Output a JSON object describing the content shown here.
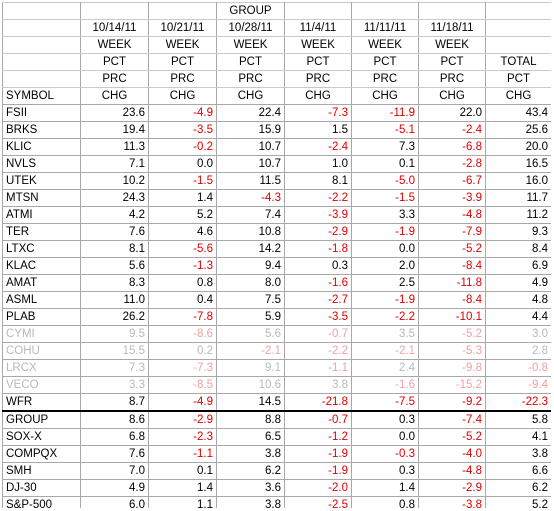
{
  "header": {
    "row1": [
      "",
      "",
      "",
      "GROUP",
      "",
      "",
      "",
      ""
    ],
    "row2": [
      "",
      "10/14/11",
      "10/21/11",
      "10/28/11",
      "11/4/11",
      "11/11/11",
      "11/18/11",
      ""
    ],
    "row3": [
      "",
      "WEEK",
      "WEEK",
      "WEEK",
      "WEEK",
      "WEEK",
      "WEEK",
      ""
    ],
    "row4": [
      "",
      "PCT",
      "PCT",
      "PCT",
      "PCT",
      "PCT",
      "PCT",
      "TOTAL"
    ],
    "row5": [
      "",
      "PRC",
      "PRC",
      "PRC",
      "PRC",
      "PRC",
      "PRC",
      "PCT"
    ],
    "row6": [
      "SYMBOL",
      "CHG",
      "CHG",
      "CHG",
      "CHG",
      "CHG",
      "CHG",
      "CHG"
    ]
  },
  "rows": [
    {
      "symbol": "FSII",
      "values": [
        "23.6",
        "-4.9",
        "22.4",
        "-7.3",
        "-11.9",
        "22.0",
        "43.4"
      ],
      "faded": false,
      "sep": false
    },
    {
      "symbol": "BRKS",
      "values": [
        "19.4",
        "-3.5",
        "15.9",
        "1.5",
        "-5.1",
        "-2.4",
        "25.6"
      ],
      "faded": false,
      "sep": false
    },
    {
      "symbol": "KLIC",
      "values": [
        "11.3",
        "-0.2",
        "10.7",
        "-2.4",
        "7.3",
        "-6.8",
        "20.0"
      ],
      "faded": false,
      "sep": false
    },
    {
      "symbol": "NVLS",
      "values": [
        "7.1",
        "0.0",
        "10.7",
        "1.0",
        "0.1",
        "-2.8",
        "16.5"
      ],
      "faded": false,
      "sep": false
    },
    {
      "symbol": "UTEK",
      "values": [
        "10.2",
        "-1.5",
        "11.5",
        "8.1",
        "-5.0",
        "-6.7",
        "16.0"
      ],
      "faded": false,
      "sep": false
    },
    {
      "symbol": "MTSN",
      "values": [
        "24.3",
        "1.4",
        "-4.3",
        "-2.2",
        "-1.5",
        "-3.9",
        "11.7"
      ],
      "faded": false,
      "sep": false
    },
    {
      "symbol": "ATMI",
      "values": [
        "4.2",
        "5.2",
        "7.4",
        "-3.9",
        "3.3",
        "-4.8",
        "11.2"
      ],
      "faded": false,
      "sep": false
    },
    {
      "symbol": "TER",
      "values": [
        "7.6",
        "4.6",
        "10.8",
        "-2.9",
        "-1.9",
        "-7.9",
        "9.3"
      ],
      "faded": false,
      "sep": false
    },
    {
      "symbol": "LTXC",
      "values": [
        "8.1",
        "-5.6",
        "14.2",
        "-1.8",
        "0.0",
        "-5.2",
        "8.4"
      ],
      "faded": false,
      "sep": false
    },
    {
      "symbol": "KLAC",
      "values": [
        "5.6",
        "-1.3",
        "9.4",
        "0.3",
        "2.0",
        "-8.4",
        "6.9"
      ],
      "faded": false,
      "sep": false
    },
    {
      "symbol": "AMAT",
      "values": [
        "8.3",
        "0.8",
        "8.0",
        "-1.6",
        "2.5",
        "-11.8",
        "4.9"
      ],
      "faded": false,
      "sep": false
    },
    {
      "symbol": "ASML",
      "values": [
        "11.0",
        "0.4",
        "7.5",
        "-2.7",
        "-1.9",
        "-8.4",
        "4.8"
      ],
      "faded": false,
      "sep": false
    },
    {
      "symbol": "PLAB",
      "values": [
        "26.2",
        "-7.8",
        "5.9",
        "-3.5",
        "-2.2",
        "-10.1",
        "4.4"
      ],
      "faded": false,
      "sep": false
    },
    {
      "symbol": "CYMI",
      "values": [
        "9.5",
        "-8.6",
        "5.6",
        "-0.7",
        "3.5",
        "-5.2",
        "3.0"
      ],
      "faded": true,
      "sep": false
    },
    {
      "symbol": "COHU",
      "values": [
        "15.5",
        "0.2",
        "-2.1",
        "-2.2",
        "-2.1",
        "-5.3",
        "2.8"
      ],
      "faded": true,
      "sep": false
    },
    {
      "symbol": "LRCX",
      "values": [
        "7.3",
        "-7.3",
        "9.1",
        "-1.1",
        "2.4",
        "-9.8",
        "-0.8"
      ],
      "faded": true,
      "sep": false
    },
    {
      "symbol": "VECO",
      "values": [
        "3.3",
        "-8.5",
        "10.6",
        "3.8",
        "-1.6",
        "-15.2",
        "-9.4"
      ],
      "faded": true,
      "sep": false
    },
    {
      "symbol": "WFR",
      "values": [
        "8.7",
        "-4.9",
        "14.5",
        "-21.8",
        "-7.5",
        "-9.2",
        "-22.3"
      ],
      "faded": false,
      "sep": false
    },
    {
      "symbol": "GROUP",
      "values": [
        "8.6",
        "-2.9",
        "8.8",
        "-0.7",
        "0.3",
        "-7.4",
        "5.8"
      ],
      "faded": false,
      "sep": true
    },
    {
      "symbol": "SOX-X",
      "values": [
        "6.8",
        "-2.3",
        "6.5",
        "-1.2",
        "0.0",
        "-5.2",
        "4.1"
      ],
      "faded": false,
      "sep": false
    },
    {
      "symbol": "COMPQX",
      "values": [
        "7.6",
        "-1.1",
        "3.8",
        "-1.9",
        "-0.3",
        "-4.0",
        "3.8"
      ],
      "faded": false,
      "sep": false
    },
    {
      "symbol": "SMH",
      "values": [
        "7.0",
        "0.1",
        "6.2",
        "-1.9",
        "0.3",
        "-4.8",
        "6.6"
      ],
      "faded": false,
      "sep": false
    },
    {
      "symbol": "DJ-30",
      "values": [
        "4.9",
        "1.4",
        "3.6",
        "-2.0",
        "1.4",
        "-2.9",
        "6.2"
      ],
      "faded": false,
      "sep": false
    },
    {
      "symbol": "S&P-500",
      "values": [
        "6.0",
        "1.1",
        "3.8",
        "-2.5",
        "0.8",
        "-3.8",
        "5.2"
      ],
      "faded": false,
      "sep": false
    }
  ],
  "colors": {
    "negative": "#e00000",
    "faded_text": "#b9b9b9",
    "faded_negative": "#f3a0a0",
    "grid": "#a8a8a8"
  }
}
